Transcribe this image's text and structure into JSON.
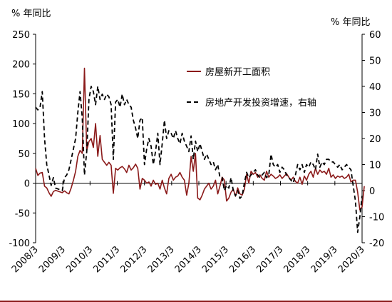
{
  "chart_data": {
    "type": "line",
    "left_unit": "% 年同比",
    "right_unit": "% 年同比",
    "x_tick_labels": [
      "2008/3",
      "2009/3",
      "2010/3",
      "2011/3",
      "2012/3",
      "2013/3",
      "2014/3",
      "2015/3",
      "2016/3",
      "2017/3",
      "2018/3",
      "2019/3",
      "2020/3"
    ],
    "y_left": {
      "min": -100,
      "max": 250,
      "ticks": [
        -100,
        -50,
        0,
        50,
        100,
        150,
        200,
        250
      ]
    },
    "y_right": {
      "min": -20,
      "max": 60,
      "ticks": [
        -20,
        -10,
        0,
        10,
        20,
        30,
        40,
        50,
        60
      ]
    },
    "x_range": {
      "start": "2008-03",
      "end": "2020-06"
    },
    "grid": false,
    "legend_position": "top-right",
    "series": [
      {
        "name": "房屋新开工面积",
        "axis": "left",
        "color": "#8b1a1a",
        "style": "solid",
        "points": [
          [
            "2008-03",
            25
          ],
          [
            "2008-04",
            13
          ],
          [
            "2008-05",
            17
          ],
          [
            "2008-06",
            18
          ],
          [
            "2008-07",
            -5
          ],
          [
            "2008-08",
            -8
          ],
          [
            "2008-09",
            -16
          ],
          [
            "2008-10",
            -22
          ],
          [
            "2008-11",
            -14
          ],
          [
            "2008-12",
            -12
          ],
          [
            "2009-03",
            -16
          ],
          [
            "2009-04",
            -13
          ],
          [
            "2009-05",
            -16
          ],
          [
            "2009-06",
            -18
          ],
          [
            "2009-07",
            -8
          ],
          [
            "2009-08",
            5
          ],
          [
            "2009-09",
            20
          ],
          [
            "2009-10",
            45
          ],
          [
            "2009-11",
            55
          ],
          [
            "2009-12",
            50
          ],
          [
            "2010-01",
            193
          ],
          [
            "2010-02",
            55
          ],
          [
            "2010-03",
            70
          ],
          [
            "2010-04",
            75
          ],
          [
            "2010-05",
            60
          ],
          [
            "2010-06",
            100
          ],
          [
            "2010-07",
            45
          ],
          [
            "2010-08",
            80
          ],
          [
            "2010-09",
            40
          ],
          [
            "2010-10",
            35
          ],
          [
            "2010-11",
            30
          ],
          [
            "2010-12",
            35
          ],
          [
            "2011-01",
            30
          ],
          [
            "2011-02",
            -17
          ],
          [
            "2011-03",
            25
          ],
          [
            "2011-04",
            22
          ],
          [
            "2011-05",
            26
          ],
          [
            "2011-06",
            28
          ],
          [
            "2011-07",
            24
          ],
          [
            "2011-08",
            18
          ],
          [
            "2011-09",
            30
          ],
          [
            "2011-10",
            22
          ],
          [
            "2011-11",
            26
          ],
          [
            "2011-12",
            32
          ],
          [
            "2012-01",
            25
          ],
          [
            "2012-02",
            -10
          ],
          [
            "2012-03",
            8
          ],
          [
            "2012-04",
            5
          ],
          [
            "2012-05",
            0
          ],
          [
            "2012-06",
            2
          ],
          [
            "2012-07",
            -5
          ],
          [
            "2012-08",
            5
          ],
          [
            "2012-09",
            -2
          ],
          [
            "2012-10",
            0
          ],
          [
            "2012-11",
            -10
          ],
          [
            "2012-12",
            5
          ],
          [
            "2013-01",
            -8
          ],
          [
            "2013-02",
            -18
          ],
          [
            "2013-03",
            8
          ],
          [
            "2013-04",
            15
          ],
          [
            "2013-05",
            5
          ],
          [
            "2013-06",
            10
          ],
          [
            "2013-07",
            12
          ],
          [
            "2013-08",
            18
          ],
          [
            "2013-09",
            10
          ],
          [
            "2013-10",
            5
          ],
          [
            "2013-11",
            -20
          ],
          [
            "2013-12",
            0
          ],
          [
            "2014-01",
            45
          ],
          [
            "2014-02",
            20
          ],
          [
            "2014-03",
            50
          ],
          [
            "2014-04",
            -25
          ],
          [
            "2014-05",
            -28
          ],
          [
            "2014-06",
            -20
          ],
          [
            "2014-07",
            -10
          ],
          [
            "2014-08",
            -5
          ],
          [
            "2014-09",
            0
          ],
          [
            "2014-10",
            -10
          ],
          [
            "2014-11",
            -5
          ],
          [
            "2014-12",
            5
          ],
          [
            "2015-01",
            -18
          ],
          [
            "2015-02",
            -5
          ],
          [
            "2015-03",
            10
          ],
          [
            "2015-04",
            5
          ],
          [
            "2015-05",
            -30
          ],
          [
            "2015-06",
            -25
          ],
          [
            "2015-07",
            -15
          ],
          [
            "2015-08",
            -10
          ],
          [
            "2015-09",
            -22
          ],
          [
            "2015-10",
            -8
          ],
          [
            "2015-11",
            -18
          ],
          [
            "2015-12",
            -20
          ],
          [
            "2016-01",
            -10
          ],
          [
            "2016-02",
            15
          ],
          [
            "2016-03",
            0
          ],
          [
            "2016-04",
            20
          ],
          [
            "2016-05",
            15
          ],
          [
            "2016-06",
            18
          ],
          [
            "2016-07",
            10
          ],
          [
            "2016-08",
            14
          ],
          [
            "2016-09",
            8
          ],
          [
            "2016-10",
            5
          ],
          [
            "2016-11",
            20
          ],
          [
            "2016-12",
            10
          ],
          [
            "2017-01",
            15
          ],
          [
            "2017-02",
            12
          ],
          [
            "2017-03",
            8
          ],
          [
            "2017-04",
            10
          ],
          [
            "2017-05",
            14
          ],
          [
            "2017-06",
            8
          ],
          [
            "2017-07",
            12
          ],
          [
            "2017-08",
            16
          ],
          [
            "2017-09",
            10
          ],
          [
            "2017-10",
            5
          ],
          [
            "2017-11",
            10
          ],
          [
            "2017-12",
            3
          ],
          [
            "2018-01",
            0
          ],
          [
            "2018-02",
            10
          ],
          [
            "2018-03",
            -2
          ],
          [
            "2018-04",
            12
          ],
          [
            "2018-05",
            5
          ],
          [
            "2018-06",
            15
          ],
          [
            "2018-07",
            20
          ],
          [
            "2018-08",
            10
          ],
          [
            "2018-09",
            25
          ],
          [
            "2018-10",
            15
          ],
          [
            "2018-11",
            22
          ],
          [
            "2018-12",
            18
          ],
          [
            "2019-01",
            20
          ],
          [
            "2019-02",
            15
          ],
          [
            "2019-03",
            25
          ],
          [
            "2019-04",
            10
          ],
          [
            "2019-05",
            14
          ],
          [
            "2019-06",
            8
          ],
          [
            "2019-07",
            12
          ],
          [
            "2019-08",
            10
          ],
          [
            "2019-09",
            12
          ],
          [
            "2019-10",
            8
          ],
          [
            "2019-11",
            10
          ],
          [
            "2019-12",
            15
          ],
          [
            "2020-01",
            2
          ],
          [
            "2020-02",
            5
          ],
          [
            "2020-03",
            5
          ],
          [
            "2020-04",
            -15
          ],
          [
            "2020-05",
            -45
          ],
          [
            "2020-06",
            -40
          ],
          [
            "2020-07",
            -5
          ]
        ]
      },
      {
        "name": "房地产开发投资增速，右轴",
        "axis": "right",
        "color": "#000000",
        "style": "dashed",
        "points": [
          [
            "2008-03",
            32
          ],
          [
            "2008-04",
            31
          ],
          [
            "2008-05",
            32
          ],
          [
            "2008-06",
            38
          ],
          [
            "2008-07",
            20
          ],
          [
            "2008-08",
            10
          ],
          [
            "2008-09",
            6
          ],
          [
            "2008-10",
            2
          ],
          [
            "2008-11",
            5
          ],
          [
            "2008-12",
            1
          ],
          [
            "2009-03",
            0
          ],
          [
            "2009-04",
            5
          ],
          [
            "2009-05",
            6
          ],
          [
            "2009-06",
            8
          ],
          [
            "2009-07",
            12
          ],
          [
            "2009-08",
            16
          ],
          [
            "2009-09",
            20
          ],
          [
            "2009-10",
            30
          ],
          [
            "2009-11",
            38
          ],
          [
            "2009-12",
            28
          ],
          [
            "2010-01",
            6
          ],
          [
            "2010-02",
            15
          ],
          [
            "2010-03",
            35
          ],
          [
            "2010-04",
            40
          ],
          [
            "2010-05",
            38
          ],
          [
            "2010-06",
            33
          ],
          [
            "2010-07",
            40
          ],
          [
            "2010-08",
            35
          ],
          [
            "2010-09",
            37
          ],
          [
            "2010-10",
            35
          ],
          [
            "2010-11",
            37
          ],
          [
            "2010-12",
            36
          ],
          [
            "2011-01",
            33
          ],
          [
            "2011-02",
            12
          ],
          [
            "2011-03",
            34
          ],
          [
            "2011-04",
            35
          ],
          [
            "2011-05",
            32
          ],
          [
            "2011-06",
            37
          ],
          [
            "2011-07",
            33
          ],
          [
            "2011-08",
            35
          ],
          [
            "2011-09",
            33
          ],
          [
            "2011-10",
            32
          ],
          [
            "2011-11",
            27
          ],
          [
            "2011-12",
            24
          ],
          [
            "2012-01",
            20
          ],
          [
            "2012-02",
            27
          ],
          [
            "2012-03",
            28
          ],
          [
            "2012-04",
            10
          ],
          [
            "2012-05",
            16
          ],
          [
            "2012-06",
            20
          ],
          [
            "2012-07",
            17
          ],
          [
            "2012-08",
            10
          ],
          [
            "2012-09",
            15
          ],
          [
            "2012-10",
            22
          ],
          [
            "2012-11",
            10
          ],
          [
            "2012-12",
            18
          ],
          [
            "2013-01",
            27
          ],
          [
            "2013-02",
            20
          ],
          [
            "2013-03",
            23
          ],
          [
            "2013-04",
            22
          ],
          [
            "2013-05",
            20
          ],
          [
            "2013-06",
            23
          ],
          [
            "2013-07",
            20
          ],
          [
            "2013-08",
            18
          ],
          [
            "2013-09",
            22
          ],
          [
            "2013-10",
            19
          ],
          [
            "2013-11",
            17
          ],
          [
            "2013-12",
            15
          ],
          [
            "2014-01",
            21
          ],
          [
            "2014-02",
            12
          ],
          [
            "2014-03",
            19
          ],
          [
            "2014-04",
            15
          ],
          [
            "2014-05",
            18
          ],
          [
            "2014-06",
            15
          ],
          [
            "2014-07",
            12
          ],
          [
            "2014-08",
            14
          ],
          [
            "2014-09",
            12
          ],
          [
            "2014-10",
            10
          ],
          [
            "2014-11",
            11
          ],
          [
            "2014-12",
            8
          ],
          [
            "2015-01",
            10
          ],
          [
            "2015-02",
            5
          ],
          [
            "2015-03",
            5
          ],
          [
            "2015-04",
            0
          ],
          [
            "2015-05",
            2
          ],
          [
            "2015-06",
            1
          ],
          [
            "2015-07",
            5
          ],
          [
            "2015-08",
            0
          ],
          [
            "2015-09",
            -2
          ],
          [
            "2015-10",
            0
          ],
          [
            "2015-11",
            -3
          ],
          [
            "2015-12",
            -2
          ],
          [
            "2016-01",
            3
          ],
          [
            "2016-02",
            7
          ],
          [
            "2016-03",
            5
          ],
          [
            "2016-04",
            6
          ],
          [
            "2016-05",
            7
          ],
          [
            "2016-06",
            8
          ],
          [
            "2016-07",
            6
          ],
          [
            "2016-08",
            5
          ],
          [
            "2016-09",
            6
          ],
          [
            "2016-10",
            7
          ],
          [
            "2016-11",
            5
          ],
          [
            "2016-12",
            6
          ],
          [
            "2017-01",
            14
          ],
          [
            "2017-02",
            10
          ],
          [
            "2017-03",
            9
          ],
          [
            "2017-04",
            10
          ],
          [
            "2017-05",
            7
          ],
          [
            "2017-06",
            9
          ],
          [
            "2017-07",
            8
          ],
          [
            "2017-08",
            6
          ],
          [
            "2017-09",
            5
          ],
          [
            "2017-10",
            4
          ],
          [
            "2017-11",
            3
          ],
          [
            "2017-12",
            6
          ],
          [
            "2018-01",
            10
          ],
          [
            "2018-02",
            8
          ],
          [
            "2018-03",
            10
          ],
          [
            "2018-04",
            7
          ],
          [
            "2018-05",
            10
          ],
          [
            "2018-06",
            9
          ],
          [
            "2018-07",
            11
          ],
          [
            "2018-08",
            10
          ],
          [
            "2018-09",
            8
          ],
          [
            "2018-10",
            14
          ],
          [
            "2018-11",
            9
          ],
          [
            "2018-12",
            11
          ],
          [
            "2019-01",
            10
          ],
          [
            "2019-02",
            12
          ],
          [
            "2019-03",
            12
          ],
          [
            "2019-04",
            11
          ],
          [
            "2019-05",
            11
          ],
          [
            "2019-06",
            10
          ],
          [
            "2019-07",
            9
          ],
          [
            "2019-08",
            10
          ],
          [
            "2019-09",
            8
          ],
          [
            "2019-10",
            9
          ],
          [
            "2019-11",
            10
          ],
          [
            "2019-12",
            9
          ],
          [
            "2020-01",
            8
          ],
          [
            "2020-02",
            2
          ],
          [
            "2020-03",
            -4
          ],
          [
            "2020-04",
            -16
          ],
          [
            "2020-05",
            -10
          ],
          [
            "2020-06",
            -2
          ]
        ]
      }
    ]
  }
}
